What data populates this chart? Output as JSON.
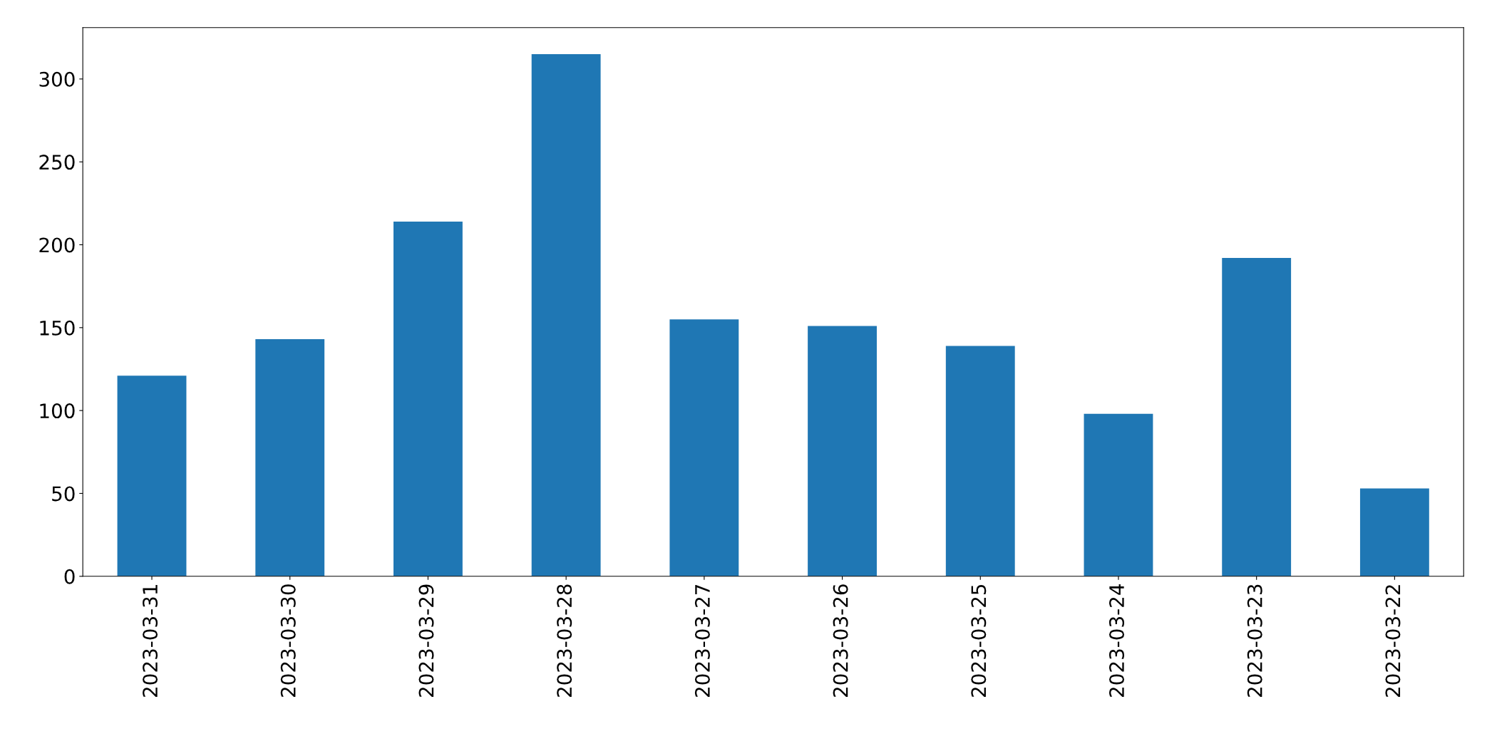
{
  "chart_data": {
    "type": "bar",
    "categories": [
      "2023-03-31",
      "2023-03-30",
      "2023-03-29",
      "2023-03-28",
      "2023-03-27",
      "2023-03-26",
      "2023-03-25",
      "2023-03-24",
      "2023-03-23",
      "2023-03-22"
    ],
    "values": [
      121,
      143,
      214,
      315,
      155,
      151,
      139,
      98,
      192,
      53
    ],
    "color": "#1f77b4",
    "ylim": [
      0,
      331
    ],
    "yticks": [
      0,
      50,
      100,
      150,
      200,
      250,
      300
    ],
    "grid": false,
    "legend": false
  }
}
